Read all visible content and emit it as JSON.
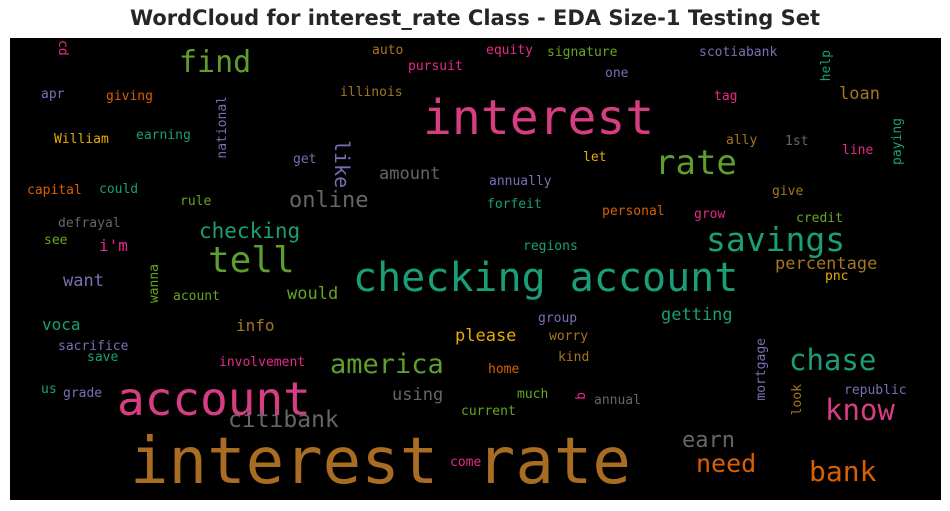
{
  "title": "WordCloud for interest_rate Class - EDA Size-1 Testing Set",
  "background_color": "#000000",
  "words": [
    {
      "text": "interest rate",
      "color": "#a86c22"
    },
    {
      "text": "interest",
      "color": "#d63d83"
    },
    {
      "text": "checking account",
      "color": "#1b9e77"
    },
    {
      "text": "account",
      "color": "#d63d83"
    },
    {
      "text": "rate",
      "color": "#5f9e2c"
    },
    {
      "text": "tell",
      "color": "#5f9e2c"
    },
    {
      "text": "savings",
      "color": "#1b9e77"
    },
    {
      "text": "find",
      "color": "#5f9e2c"
    },
    {
      "text": "know",
      "color": "#d63d83"
    },
    {
      "text": "chase",
      "color": "#1b9e77"
    },
    {
      "text": "america",
      "color": "#5f9e2c"
    },
    {
      "text": "bank",
      "color": "#d95f02"
    },
    {
      "text": "need",
      "color": "#d95f02"
    },
    {
      "text": "citibank",
      "color": "#666666"
    },
    {
      "text": "online",
      "color": "#666666"
    },
    {
      "text": "checking",
      "color": "#1b9e77"
    },
    {
      "text": "earn",
      "color": "#666666"
    },
    {
      "text": "percentage",
      "color": "#a6761d"
    },
    {
      "text": "getting",
      "color": "#1b9e77"
    },
    {
      "text": "please",
      "color": "#e6ab02"
    },
    {
      "text": "would",
      "color": "#66a61e"
    },
    {
      "text": "amount",
      "color": "#666666"
    },
    {
      "text": "like",
      "color": "#7570b3"
    },
    {
      "text": "using",
      "color": "#666666"
    },
    {
      "text": "info",
      "color": "#a6761d"
    },
    {
      "text": "loan",
      "color": "#a6761d"
    },
    {
      "text": "want",
      "color": "#7570b3"
    },
    {
      "text": "voca",
      "color": "#1b9e77"
    },
    {
      "text": "i'm",
      "color": "#e7298a"
    },
    {
      "text": "illinois",
      "color": "#a6761d"
    },
    {
      "text": "auto",
      "color": "#a6761d"
    },
    {
      "text": "pursuit",
      "color": "#e7298a"
    },
    {
      "text": "equity",
      "color": "#e7298a"
    },
    {
      "text": "signature",
      "color": "#66a61e"
    },
    {
      "text": "scotiabank",
      "color": "#7570b3"
    },
    {
      "text": "one",
      "color": "#7570b3"
    },
    {
      "text": "cd",
      "color": "#e7298a"
    },
    {
      "text": "apr",
      "color": "#7570b3"
    },
    {
      "text": "giving",
      "color": "#d95f02"
    },
    {
      "text": "William",
      "color": "#e6ab02"
    },
    {
      "text": "earning",
      "color": "#1b9e77"
    },
    {
      "text": "national",
      "color": "#7570b3"
    },
    {
      "text": "tag",
      "color": "#e7298a"
    },
    {
      "text": "help",
      "color": "#1b9e77"
    },
    {
      "text": "ally",
      "color": "#a6761d"
    },
    {
      "text": "1st",
      "color": "#666666"
    },
    {
      "text": "paying",
      "color": "#1b9e77"
    },
    {
      "text": "line",
      "color": "#e7298a"
    },
    {
      "text": "get",
      "color": "#7570b3"
    },
    {
      "text": "let",
      "color": "#e6ab02"
    },
    {
      "text": "capital",
      "color": "#d95f02"
    },
    {
      "text": "could",
      "color": "#1b9e77"
    },
    {
      "text": "annually",
      "color": "#7570b3"
    },
    {
      "text": "give",
      "color": "#a6761d"
    },
    {
      "text": "rule",
      "color": "#66a61e"
    },
    {
      "text": "forfeit",
      "color": "#1b9e77"
    },
    {
      "text": "personal",
      "color": "#d95f02"
    },
    {
      "text": "grow",
      "color": "#e7298a"
    },
    {
      "text": "credit",
      "color": "#66a61e"
    },
    {
      "text": "defrayal",
      "color": "#666666"
    },
    {
      "text": "see",
      "color": "#66a61e"
    },
    {
      "text": "regions",
      "color": "#1b9e77"
    },
    {
      "text": "pnc",
      "color": "#e6ab02"
    },
    {
      "text": "wanna",
      "color": "#66a61e"
    },
    {
      "text": "acount",
      "color": "#66a61e"
    },
    {
      "text": "group",
      "color": "#7570b3"
    },
    {
      "text": "worry",
      "color": "#a6761d"
    },
    {
      "text": "sacrifice",
      "color": "#7570b3"
    },
    {
      "text": "save",
      "color": "#1b9e77"
    },
    {
      "text": "involvement",
      "color": "#e7298a"
    },
    {
      "text": "kind",
      "color": "#a6761d"
    },
    {
      "text": "mortgage",
      "color": "#7570b3"
    },
    {
      "text": "home",
      "color": "#d95f02"
    },
    {
      "text": "us",
      "color": "#1b9e77"
    },
    {
      "text": "grade",
      "color": "#7570b3"
    },
    {
      "text": "much",
      "color": "#66a61e"
    },
    {
      "text": "b",
      "color": "#e7298a"
    },
    {
      "text": "annual",
      "color": "#666666"
    },
    {
      "text": "look",
      "color": "#a6761d"
    },
    {
      "text": "republic",
      "color": "#7570b3"
    },
    {
      "text": "current",
      "color": "#66a61e"
    },
    {
      "text": "come",
      "color": "#e7298a"
    }
  ]
}
